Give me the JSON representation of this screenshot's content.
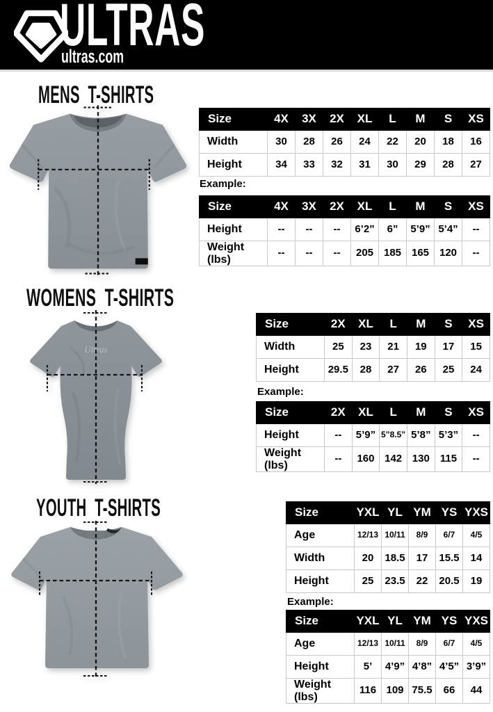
{
  "header": {
    "brand": "ULTRAS",
    "site": "ultras.com"
  },
  "colors": {
    "header_bg": "#000000",
    "table_header_bg": "#000000",
    "table_border": "#c9c9c9",
    "shirt_gray": "#8b9298"
  },
  "sections": [
    {
      "id": "mens",
      "title": "MENS T-SHIRTS",
      "example_label": "Example:",
      "size_table": {
        "headers": [
          "Size",
          "4X",
          "3X",
          "2X",
          "XL",
          "L",
          "M",
          "S",
          "XS"
        ],
        "rows": [
          {
            "label": "Width",
            "values": [
              "30",
              "28",
              "26",
              "24",
              "22",
              "20",
              "18",
              "16"
            ]
          },
          {
            "label": "Height",
            "values": [
              "34",
              "33",
              "32",
              "31",
              "30",
              "29",
              "28",
              "27"
            ]
          }
        ]
      },
      "example_table": {
        "headers": [
          "Size",
          "4X",
          "3X",
          "2X",
          "XL",
          "L",
          "M",
          "S",
          "XS"
        ],
        "rows": [
          {
            "label": "Height",
            "values": [
              "--",
              "--",
              "--",
              "6’2”",
              "6”",
              "5’9”",
              "5’4”",
              "--"
            ]
          },
          {
            "label": "Weight (lbs)",
            "values": [
              "--",
              "--",
              "--",
              "205",
              "185",
              "165",
              "120",
              "--"
            ]
          }
        ]
      }
    },
    {
      "id": "womens",
      "title": "WOMENS T-SHIRTS",
      "example_label": "Example:",
      "size_table": {
        "headers": [
          "Size",
          "2X",
          "XL",
          "L",
          "M",
          "S",
          "XS"
        ],
        "rows": [
          {
            "label": "Width",
            "values": [
              "25",
              "23",
              "21",
              "19",
              "17",
              "15"
            ]
          },
          {
            "label": "Height",
            "values": [
              "29.5",
              "28",
              "27",
              "26",
              "25",
              "24"
            ]
          }
        ]
      },
      "example_table": {
        "headers": [
          "Size",
          "2X",
          "XL",
          "L",
          "M",
          "S",
          "XS"
        ],
        "rows": [
          {
            "label": "Height",
            "values": [
              "--",
              "5’9”",
              "5”8.5”",
              "5’8”",
              "5’3”",
              "--"
            ]
          },
          {
            "label": "Weight (lbs)",
            "values": [
              "--",
              "160",
              "142",
              "130",
              "115",
              "--"
            ]
          }
        ]
      }
    },
    {
      "id": "youth",
      "title": "YOUTH T-SHIRTS",
      "example_label": "Example:",
      "size_table": {
        "headers": [
          "Size",
          "YXL",
          "YL",
          "YM",
          "YS",
          "YXS"
        ],
        "rows": [
          {
            "label": "Age",
            "values": [
              "12/13",
              "10/11",
              "8/9",
              "6/7",
              "4/5"
            ]
          },
          {
            "label": "Width",
            "values": [
              "20",
              "18.5",
              "17",
              "15.5",
              "14"
            ]
          },
          {
            "label": "Height",
            "values": [
              "25",
              "23.5",
              "22",
              "20.5",
              "19"
            ]
          }
        ]
      },
      "example_table": {
        "headers": [
          "Size",
          "YXL",
          "YL",
          "YM",
          "YS",
          "YXS"
        ],
        "rows": [
          {
            "label": "Age",
            "values": [
              "12/13",
              "10/11",
              "8/9",
              "6/7",
              "4/5"
            ]
          },
          {
            "label": "Height",
            "values": [
              "5’",
              "4’9”",
              "4’8”",
              "4’5”",
              "3’9”"
            ]
          },
          {
            "label": "Weight (lbs)",
            "values": [
              "116",
              "109",
              "75.5",
              "66",
              "44"
            ]
          }
        ]
      }
    }
  ]
}
